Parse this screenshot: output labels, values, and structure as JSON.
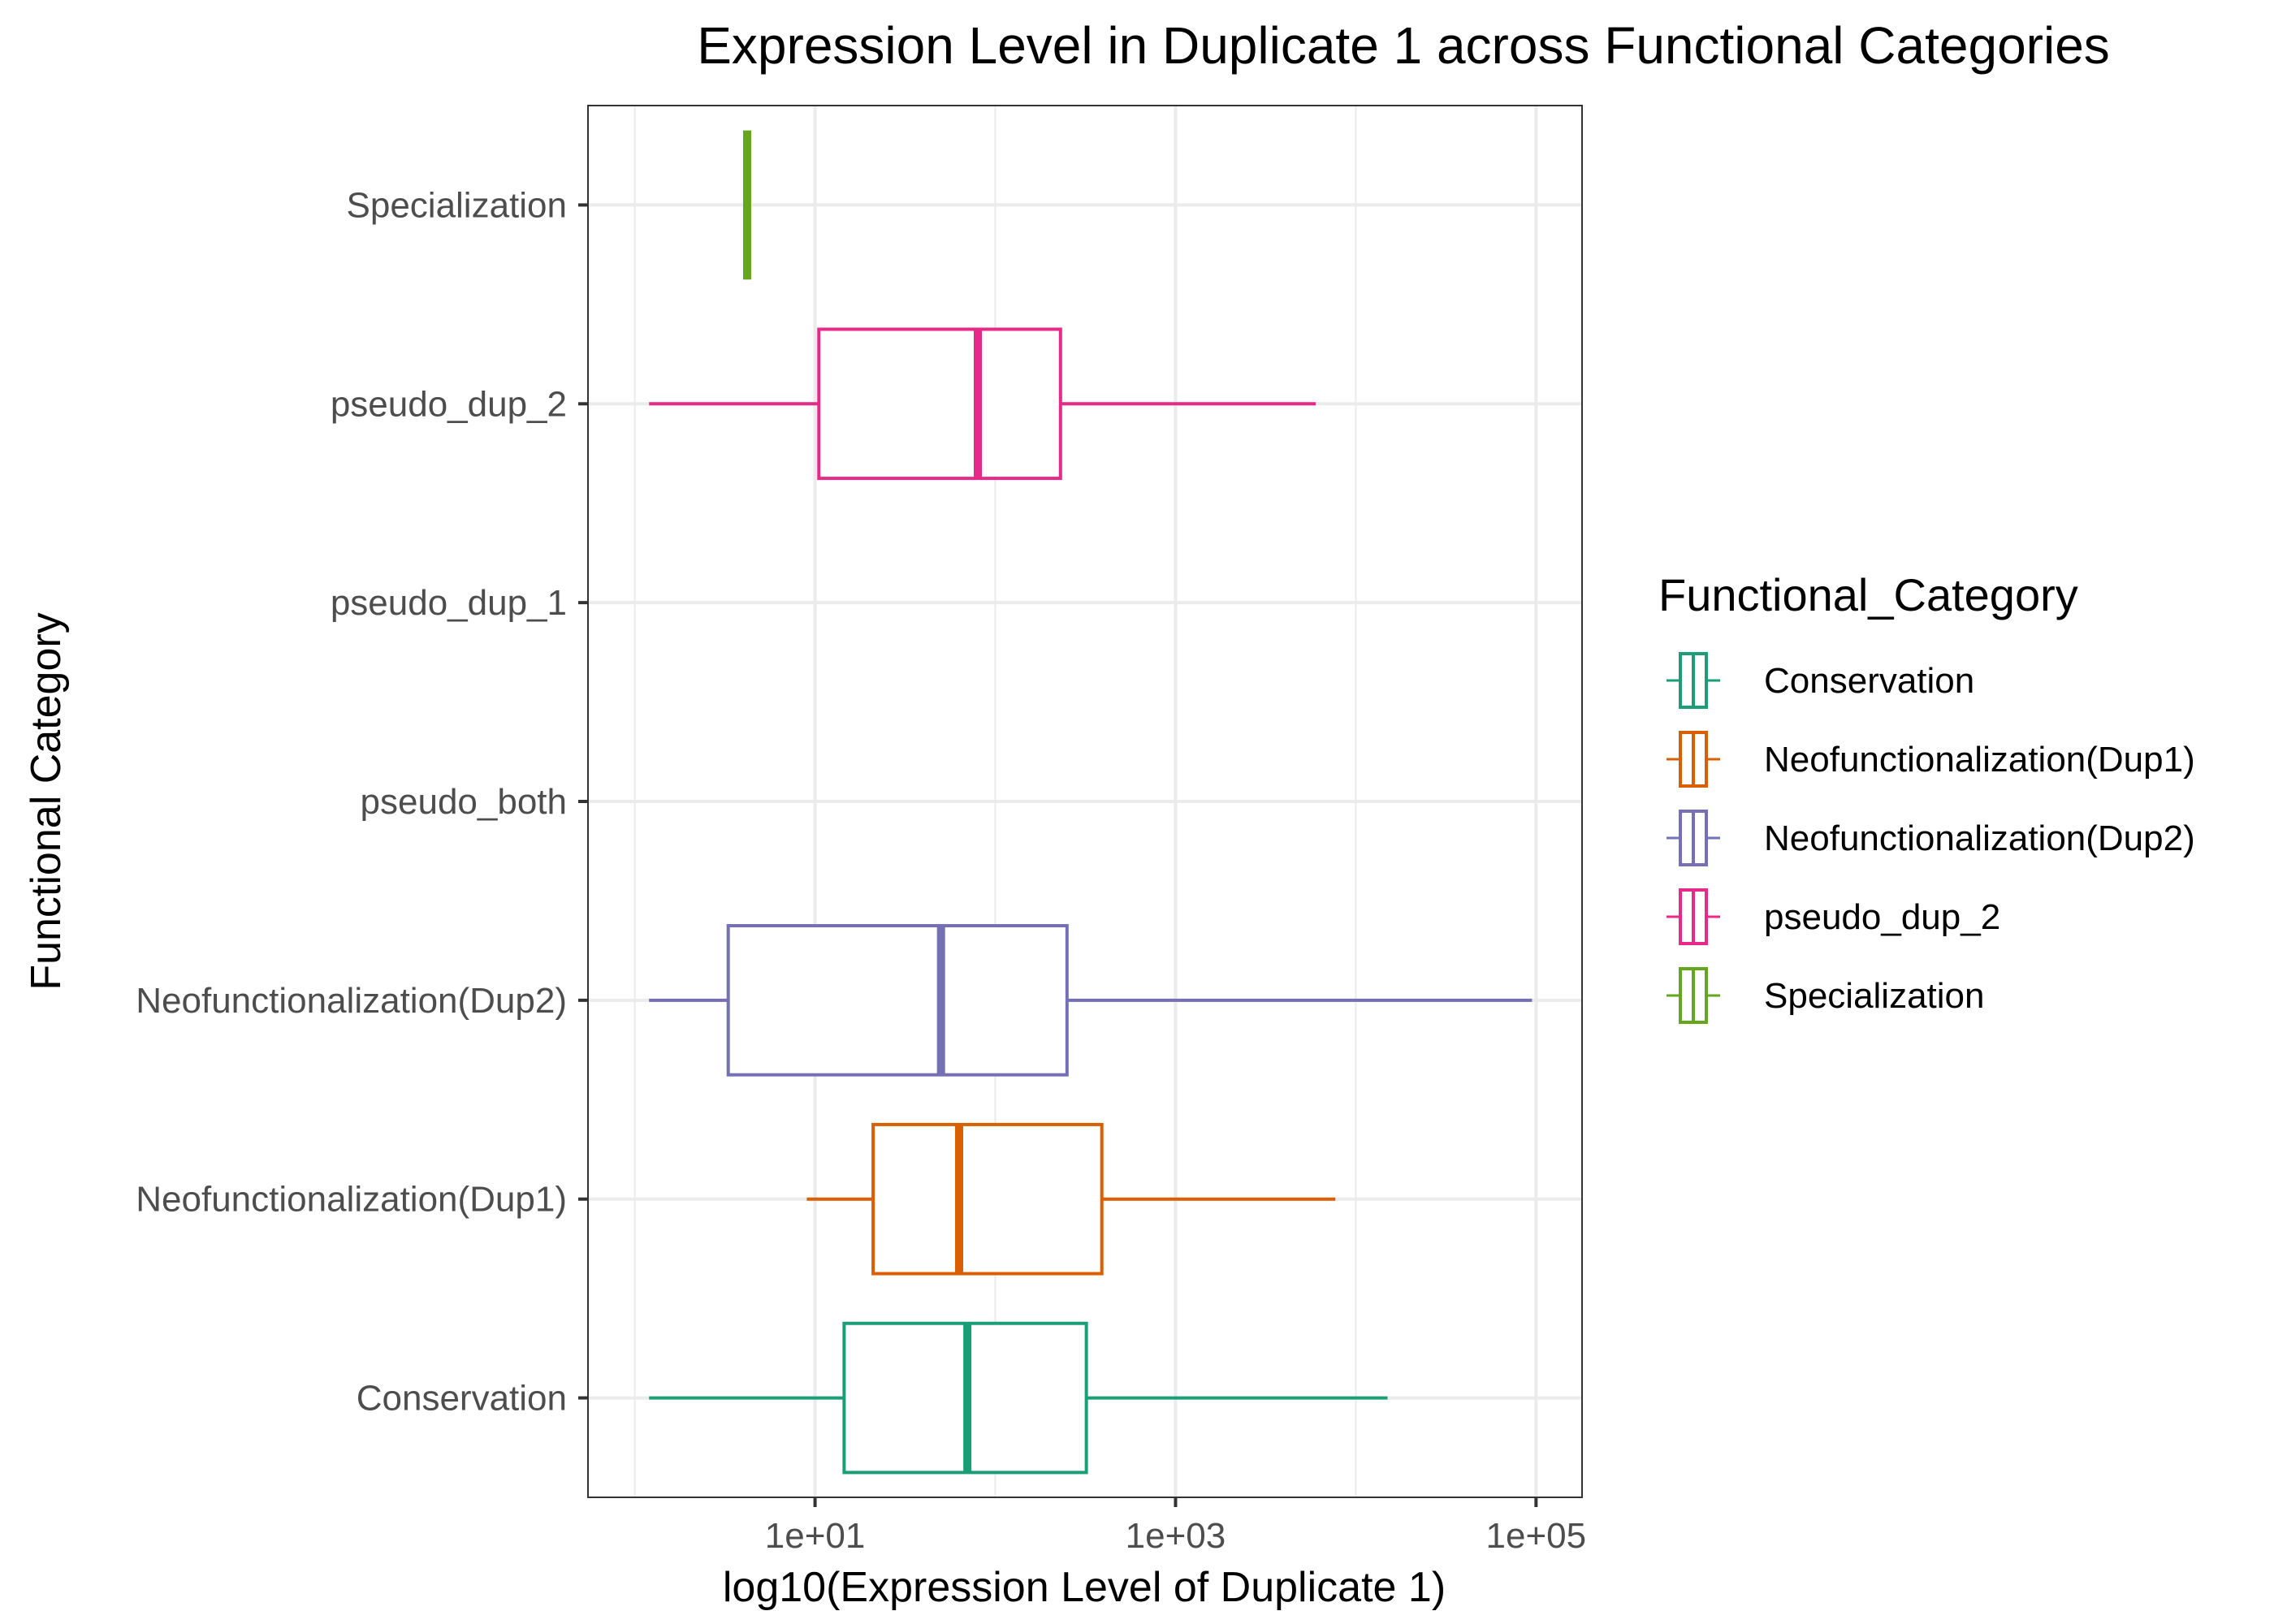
{
  "chart_data": {
    "type": "boxplot",
    "orientation": "horizontal",
    "title": "Expression Level in Duplicate 1 across Functional Categories",
    "xlabel": "log10(Expression Level of Duplicate 1)",
    "ylabel": "Functional Category",
    "x_scale": "log10",
    "xlim": [
      0.55,
      180000
    ],
    "x_ticks": [
      {
        "value": 10,
        "label": "1e+01"
      },
      {
        "value": 1000,
        "label": "1e+03"
      },
      {
        "value": 100000,
        "label": "1e+05"
      }
    ],
    "x_minor_gridlines": [
      1,
      100,
      10000
    ],
    "grid": true,
    "categories": [
      "Conservation",
      "Neofunctionalization(Dup1)",
      "Neofunctionalization(Dup2)",
      "pseudo_both",
      "pseudo_dup_1",
      "pseudo_dup_2",
      "Specialization"
    ],
    "boxes": [
      {
        "category": "Conservation",
        "color": "#1b9e77",
        "whisker_low": 1.2,
        "q1": 14.5,
        "median": 70,
        "q3": 320,
        "whisker_high": 15000
      },
      {
        "category": "Neofunctionalization(Dup1)",
        "color": "#d95f02",
        "whisker_low": 9,
        "q1": 21,
        "median": 63,
        "q3": 390,
        "whisker_high": 7700
      },
      {
        "category": "Neofunctionalization(Dup2)",
        "color": "#7570b3",
        "whisker_low": 1.2,
        "q1": 3.3,
        "median": 50,
        "q3": 250,
        "whisker_high": 95000
      },
      {
        "category": "pseudo_both",
        "color": "",
        "whisker_low": null,
        "q1": null,
        "median": null,
        "q3": null,
        "whisker_high": null
      },
      {
        "category": "pseudo_dup_1",
        "color": "",
        "whisker_low": null,
        "q1": null,
        "median": null,
        "q3": null,
        "whisker_high": null
      },
      {
        "category": "pseudo_dup_2",
        "color": "#e7298a",
        "whisker_low": 1.2,
        "q1": 10.5,
        "median": 80,
        "q3": 230,
        "whisker_high": 6000
      },
      {
        "category": "Specialization",
        "color": "#66a61e",
        "whisker_low": 4.2,
        "q1": 4.2,
        "median": 4.2,
        "q3": 4.2,
        "whisker_high": 4.2
      }
    ],
    "legend": {
      "title": "Functional_Category",
      "position": "right",
      "items": [
        {
          "label": "Conservation",
          "color": "#1b9e77"
        },
        {
          "label": "Neofunctionalization(Dup1)",
          "color": "#d95f02"
        },
        {
          "label": "Neofunctionalization(Dup2)",
          "color": "#7570b3"
        },
        {
          "label": "pseudo_dup_2",
          "color": "#e7298a"
        },
        {
          "label": "Specialization",
          "color": "#66a61e"
        }
      ]
    }
  }
}
